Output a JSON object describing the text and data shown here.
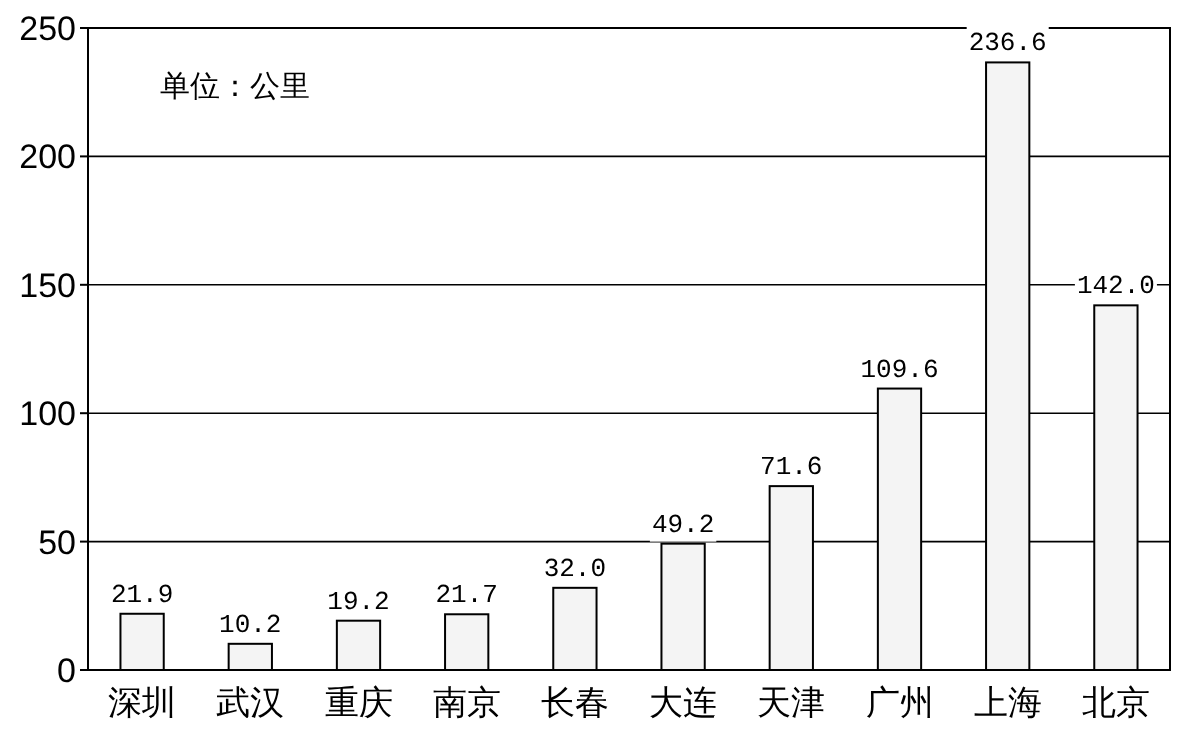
{
  "chart_data": {
    "type": "bar",
    "categories": [
      "深圳",
      "武汉",
      "重庆",
      "南京",
      "长春",
      "大连",
      "天津",
      "广州",
      "上海",
      "北京"
    ],
    "values": [
      21.9,
      10.2,
      19.2,
      21.7,
      32.0,
      49.2,
      71.6,
      109.6,
      236.6,
      142.0
    ],
    "value_labels": [
      "21.9",
      "10.2",
      "19.2",
      "21.7",
      "32.0",
      "49.2",
      "71.6",
      "109.6",
      "236.6",
      "142.0"
    ],
    "color": "#f4f4f4",
    "ylim": [
      0,
      250
    ],
    "yticks": [
      0,
      50,
      100,
      150,
      200,
      250
    ],
    "grid": "y",
    "annotations": [
      "单位：公里"
    ]
  }
}
